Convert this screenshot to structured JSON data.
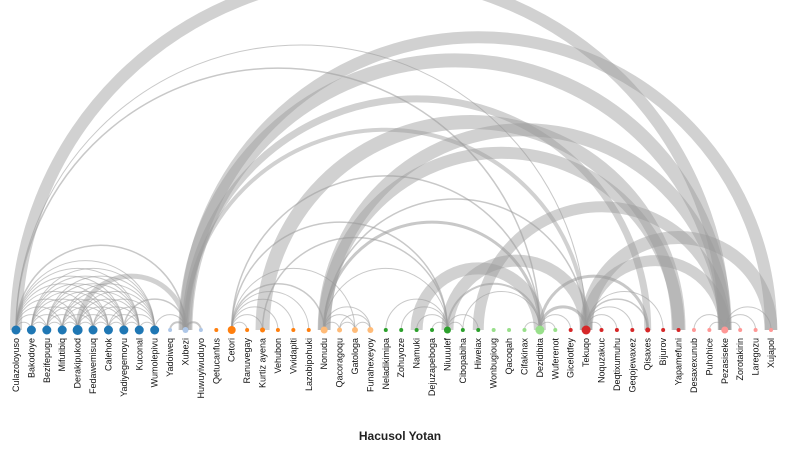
{
  "title": "Hacusol Yotan",
  "colors": {
    "arc": "#9a9a9a",
    "group_blue": "#1f77b4",
    "group_lightblue": "#aec7e8",
    "group_orange": "#ff7f0e",
    "group_lightorange": "#ffbb78",
    "group_green": "#2ca02c",
    "group_lightgreen": "#98df8a",
    "group_red": "#d62728",
    "group_pink": "#ff9896"
  },
  "nodes": [
    {
      "name": "Culazoloyuso",
      "group": "blue",
      "size": 4.5
    },
    {
      "name": "Bakodoye",
      "group": "blue",
      "size": 4.5
    },
    {
      "name": "Bezifepugu",
      "group": "blue",
      "size": 4.5
    },
    {
      "name": "Mifutibiq",
      "group": "blue",
      "size": 4.5
    },
    {
      "name": "Derakipukod",
      "group": "blue",
      "size": 5
    },
    {
      "name": "Fedawemisuq",
      "group": "blue",
      "size": 4.5
    },
    {
      "name": "Calehok",
      "group": "blue",
      "size": 4.5
    },
    {
      "name": "Yadiyegemoyu",
      "group": "blue",
      "size": 4.5
    },
    {
      "name": "Kuconal",
      "group": "blue",
      "size": 4.5
    },
    {
      "name": "Wumolepivu",
      "group": "blue",
      "size": 4.5
    },
    {
      "name": "Yadoiweq",
      "group": "lightblue",
      "size": 2
    },
    {
      "name": "Xubezi",
      "group": "lightblue",
      "size": 3
    },
    {
      "name": "Huwuyiwuduyo",
      "group": "lightblue",
      "size": 2
    },
    {
      "name": "Qetucanfus",
      "group": "orange",
      "size": 2
    },
    {
      "name": "Cetori",
      "group": "orange",
      "size": 4
    },
    {
      "name": "Ranuvegay",
      "group": "orange",
      "size": 2
    },
    {
      "name": "Kurtiz ayena",
      "group": "orange",
      "size": 2.5
    },
    {
      "name": "Vehubon",
      "group": "orange",
      "size": 2
    },
    {
      "name": "Vividapiti",
      "group": "orange",
      "size": 2
    },
    {
      "name": "Lazobipohuki",
      "group": "orange",
      "size": 2
    },
    {
      "name": "Nonudu",
      "group": "lightorange",
      "size": 3.5
    },
    {
      "name": "Qacoragoqu",
      "group": "lightorange",
      "size": 2.5
    },
    {
      "name": "Gatologa",
      "group": "lightorange",
      "size": 3
    },
    {
      "name": "Funahexeyoy",
      "group": "lightorange",
      "size": 3
    },
    {
      "name": "Neladikimipa",
      "group": "green",
      "size": 2
    },
    {
      "name": "Zohuyoze",
      "group": "green",
      "size": 2
    },
    {
      "name": "Namuki",
      "group": "green",
      "size": 2
    },
    {
      "name": "Dejuzapeboga",
      "group": "green",
      "size": 2
    },
    {
      "name": "Niuuulef",
      "group": "green",
      "size": 3.5
    },
    {
      "name": "Cibopabiha",
      "group": "green",
      "size": 2
    },
    {
      "name": "Hiweiax",
      "group": "green",
      "size": 2
    },
    {
      "name": "Wonbugioug",
      "group": "lightgreen",
      "size": 2
    },
    {
      "name": "Qacoqah",
      "group": "lightgreen",
      "size": 2
    },
    {
      "name": "Cifakinax",
      "group": "lightgreen",
      "size": 2
    },
    {
      "name": "Dezidibita",
      "group": "lightgreen",
      "size": 4.5
    },
    {
      "name": "Wuferenot",
      "group": "lightgreen",
      "size": 2
    },
    {
      "name": "Gicelotfey",
      "group": "red",
      "size": 2
    },
    {
      "name": "Tekuqo",
      "group": "red",
      "size": 4.5
    },
    {
      "name": "Noquzakuc",
      "group": "red",
      "size": 2
    },
    {
      "name": "Deqtixumuhu",
      "group": "red",
      "size": 2
    },
    {
      "name": "Geqojewaxez",
      "group": "red",
      "size": 2
    },
    {
      "name": "Qisaxes",
      "group": "red",
      "size": 2.5
    },
    {
      "name": "Bijurov",
      "group": "red",
      "size": 2
    },
    {
      "name": "Yapamefuni",
      "group": "red",
      "size": 2
    },
    {
      "name": "Desaxexunub",
      "group": "pink",
      "size": 2
    },
    {
      "name": "Puhohice",
      "group": "pink",
      "size": 2
    },
    {
      "name": "Pezasiseke",
      "group": "pink",
      "size": 3.5
    },
    {
      "name": "Zorotakirin",
      "group": "pink",
      "size": 2
    },
    {
      "name": "Laregozu",
      "group": "pink",
      "size": 2
    },
    {
      "name": "Xujapol",
      "group": "pink",
      "size": 2
    }
  ],
  "links": [
    [
      0,
      1,
      1
    ],
    [
      0,
      2,
      1
    ],
    [
      0,
      3,
      1
    ],
    [
      0,
      4,
      1
    ],
    [
      0,
      5,
      1
    ],
    [
      0,
      6,
      1
    ],
    [
      0,
      7,
      1
    ],
    [
      0,
      8,
      1
    ],
    [
      0,
      9,
      1
    ],
    [
      1,
      2,
      1
    ],
    [
      1,
      3,
      1
    ],
    [
      1,
      4,
      1
    ],
    [
      1,
      5,
      1
    ],
    [
      1,
      6,
      1
    ],
    [
      1,
      7,
      1
    ],
    [
      1,
      8,
      1
    ],
    [
      1,
      9,
      1
    ],
    [
      2,
      3,
      1
    ],
    [
      2,
      4,
      1
    ],
    [
      2,
      5,
      1
    ],
    [
      2,
      6,
      1
    ],
    [
      2,
      7,
      1
    ],
    [
      2,
      8,
      1
    ],
    [
      2,
      9,
      1
    ],
    [
      3,
      4,
      1
    ],
    [
      3,
      5,
      1
    ],
    [
      3,
      6,
      1
    ],
    [
      3,
      7,
      1
    ],
    [
      3,
      8,
      1
    ],
    [
      3,
      9,
      1
    ],
    [
      4,
      5,
      1
    ],
    [
      4,
      6,
      1
    ],
    [
      4,
      7,
      1
    ],
    [
      4,
      8,
      1
    ],
    [
      4,
      9,
      1
    ],
    [
      5,
      6,
      1
    ],
    [
      5,
      7,
      1
    ],
    [
      5,
      8,
      1
    ],
    [
      5,
      9,
      1
    ],
    [
      6,
      7,
      1
    ],
    [
      6,
      8,
      1
    ],
    [
      6,
      9,
      1
    ],
    [
      7,
      8,
      1
    ],
    [
      7,
      9,
      1
    ],
    [
      8,
      9,
      1
    ],
    [
      10,
      11,
      2
    ],
    [
      11,
      12,
      2
    ],
    [
      0,
      34,
      1.5
    ],
    [
      0,
      46,
      12
    ],
    [
      0,
      37,
      1
    ],
    [
      0,
      11,
      1.5
    ],
    [
      4,
      11,
      5
    ],
    [
      7,
      11,
      1.5
    ],
    [
      9,
      11,
      1
    ],
    [
      11,
      46,
      14
    ],
    [
      11,
      37,
      4
    ],
    [
      11,
      41,
      7
    ],
    [
      11,
      49,
      12
    ],
    [
      14,
      15,
      1
    ],
    [
      14,
      16,
      1
    ],
    [
      14,
      17,
      1
    ],
    [
      14,
      18,
      1
    ],
    [
      14,
      19,
      1
    ],
    [
      14,
      20,
      1.5
    ],
    [
      14,
      22,
      1
    ],
    [
      14,
      28,
      1.5
    ],
    [
      14,
      34,
      1.5
    ],
    [
      16,
      43,
      14
    ],
    [
      16,
      28,
      1.5
    ],
    [
      20,
      21,
      1
    ],
    [
      20,
      22,
      1
    ],
    [
      20,
      23,
      1
    ],
    [
      20,
      28,
      1
    ],
    [
      20,
      34,
      3
    ],
    [
      20,
      37,
      1.5
    ],
    [
      20,
      43,
      12
    ],
    [
      20,
      46,
      13
    ],
    [
      21,
      22,
      1
    ],
    [
      21,
      23,
      1
    ],
    [
      22,
      23,
      1
    ],
    [
      24,
      28,
      1
    ],
    [
      25,
      28,
      1
    ],
    [
      26,
      28,
      1
    ],
    [
      27,
      28,
      1
    ],
    [
      28,
      29,
      1
    ],
    [
      28,
      30,
      1
    ],
    [
      28,
      34,
      2
    ],
    [
      28,
      37,
      12
    ],
    [
      26,
      34,
      12
    ],
    [
      29,
      34,
      1
    ],
    [
      30,
      46,
      11
    ],
    [
      33,
      34,
      1
    ],
    [
      34,
      35,
      1
    ],
    [
      34,
      36,
      1
    ],
    [
      34,
      37,
      3
    ],
    [
      34,
      41,
      3
    ],
    [
      37,
      38,
      1
    ],
    [
      37,
      39,
      1
    ],
    [
      37,
      40,
      1
    ],
    [
      37,
      41,
      1.5
    ],
    [
      37,
      42,
      1
    ],
    [
      37,
      46,
      11
    ],
    [
      37,
      49,
      13
    ],
    [
      44,
      46,
      1
    ],
    [
      45,
      46,
      1
    ],
    [
      46,
      47,
      1
    ],
    [
      46,
      48,
      1
    ],
    [
      46,
      49,
      1
    ]
  ]
}
